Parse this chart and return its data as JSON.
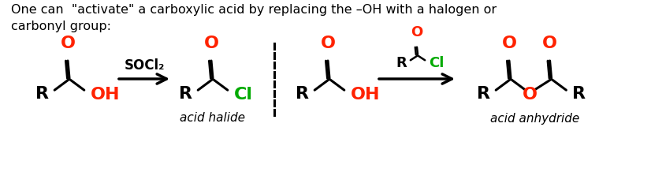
{
  "background_color": "#ffffff",
  "text_color": "#000000",
  "red_color": "#ff2200",
  "green_color": "#00aa00",
  "header_text": "One can  \"activate\" a carboxylic acid by replacing the –OH with a halogen or\ncarbonyl group:",
  "header_fontsize": 11.5,
  "reagent_label": "SOCl₂",
  "acid_halide_label": "acid halide",
  "acid_anhydride_label": "acid anhydride",
  "italic_fontsize": 11,
  "structure_fontsize": 16,
  "small_fontsize": 13,
  "lw": 2.2
}
